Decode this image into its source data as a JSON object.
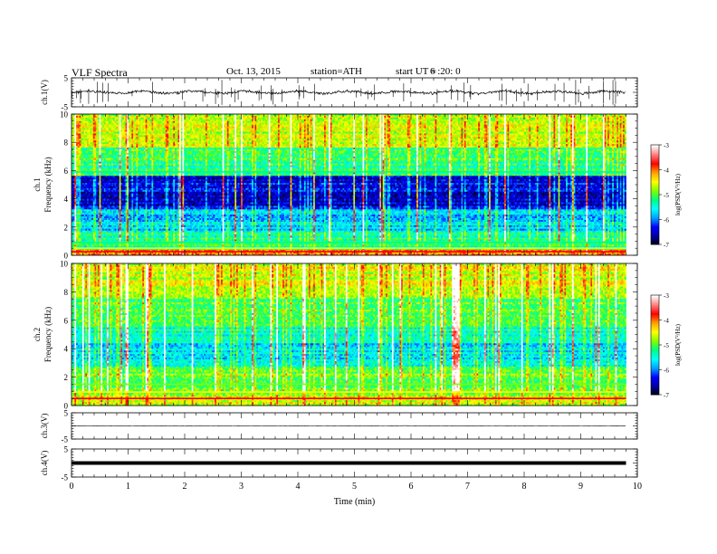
{
  "header": {
    "title": "VLF  Spectra",
    "date": "Oct. 13, 2015",
    "station": "station=ATH",
    "start_label": "start  UT  =",
    "start_value": "6  :20: 0"
  },
  "chart_data": [
    {
      "panel": "ch1-waveform",
      "type": "line",
      "ylabel": "ch.1(V)",
      "ylim": [
        -5,
        5
      ],
      "yticks": [
        "5",
        "-5"
      ],
      "xlim": [
        0,
        10
      ],
      "baseline": 0,
      "x_end": 9.8,
      "color": "#000000"
    },
    {
      "panel": "ch1-spectrogram",
      "type": "heatmap",
      "ylabel": "ch.1\nFrequency  (kHz)",
      "ylim": [
        0,
        10
      ],
      "yticks": [
        "0",
        "2",
        "4",
        "6",
        "8",
        "10"
      ],
      "xlim": [
        0,
        10
      ],
      "x_end": 9.8,
      "colorbar": {
        "label": "log(PSD(V²/Hz)",
        "range": [
          -7,
          -3
        ],
        "ticks": [
          "-3",
          "-4",
          "-5",
          "-6",
          "-7"
        ]
      }
    },
    {
      "panel": "ch2-spectrogram",
      "type": "heatmap",
      "ylabel": "ch.2\nFrequency  (kHz)",
      "ylim": [
        0,
        10
      ],
      "yticks": [
        "0",
        "2",
        "4",
        "6",
        "8",
        "10"
      ],
      "xlim": [
        0,
        10
      ],
      "x_end": 9.8,
      "colorbar": {
        "label": "log(PSD(V²/Hz)",
        "range": [
          -7,
          -3
        ],
        "ticks": [
          "-3",
          "-4",
          "-5",
          "-6",
          "-7"
        ]
      }
    },
    {
      "panel": "ch3-waveform",
      "type": "line",
      "ylabel": "ch.3(V)",
      "ylim": [
        -5,
        5
      ],
      "yticks": [
        "5",
        "-5"
      ],
      "xlim": [
        0,
        10
      ],
      "baseline": 0,
      "x_end": 9.8,
      "color": "#000000"
    },
    {
      "panel": "ch4-waveform",
      "type": "line",
      "ylabel": "ch.4(V)",
      "ylim": [
        -5,
        5
      ],
      "yticks": [
        "5",
        "-5"
      ],
      "xlim": [
        0,
        10
      ],
      "baseline": 0,
      "x_end": 9.8,
      "color": "#000000"
    }
  ],
  "xaxis": {
    "label": "Time  (min)",
    "range": [
      0,
      10
    ],
    "ticks": [
      "0",
      "1",
      "2",
      "3",
      "4",
      "5",
      "6",
      "7",
      "8",
      "9",
      "10"
    ]
  },
  "colors": {
    "colormap": [
      "#000000",
      "#0000a0",
      "#0000ff",
      "#00a0ff",
      "#00ffff",
      "#00ff80",
      "#80ff00",
      "#ffff00",
      "#ffa000",
      "#ff0000",
      "#ff8080",
      "#ffffff"
    ],
    "axes": "#000000"
  }
}
